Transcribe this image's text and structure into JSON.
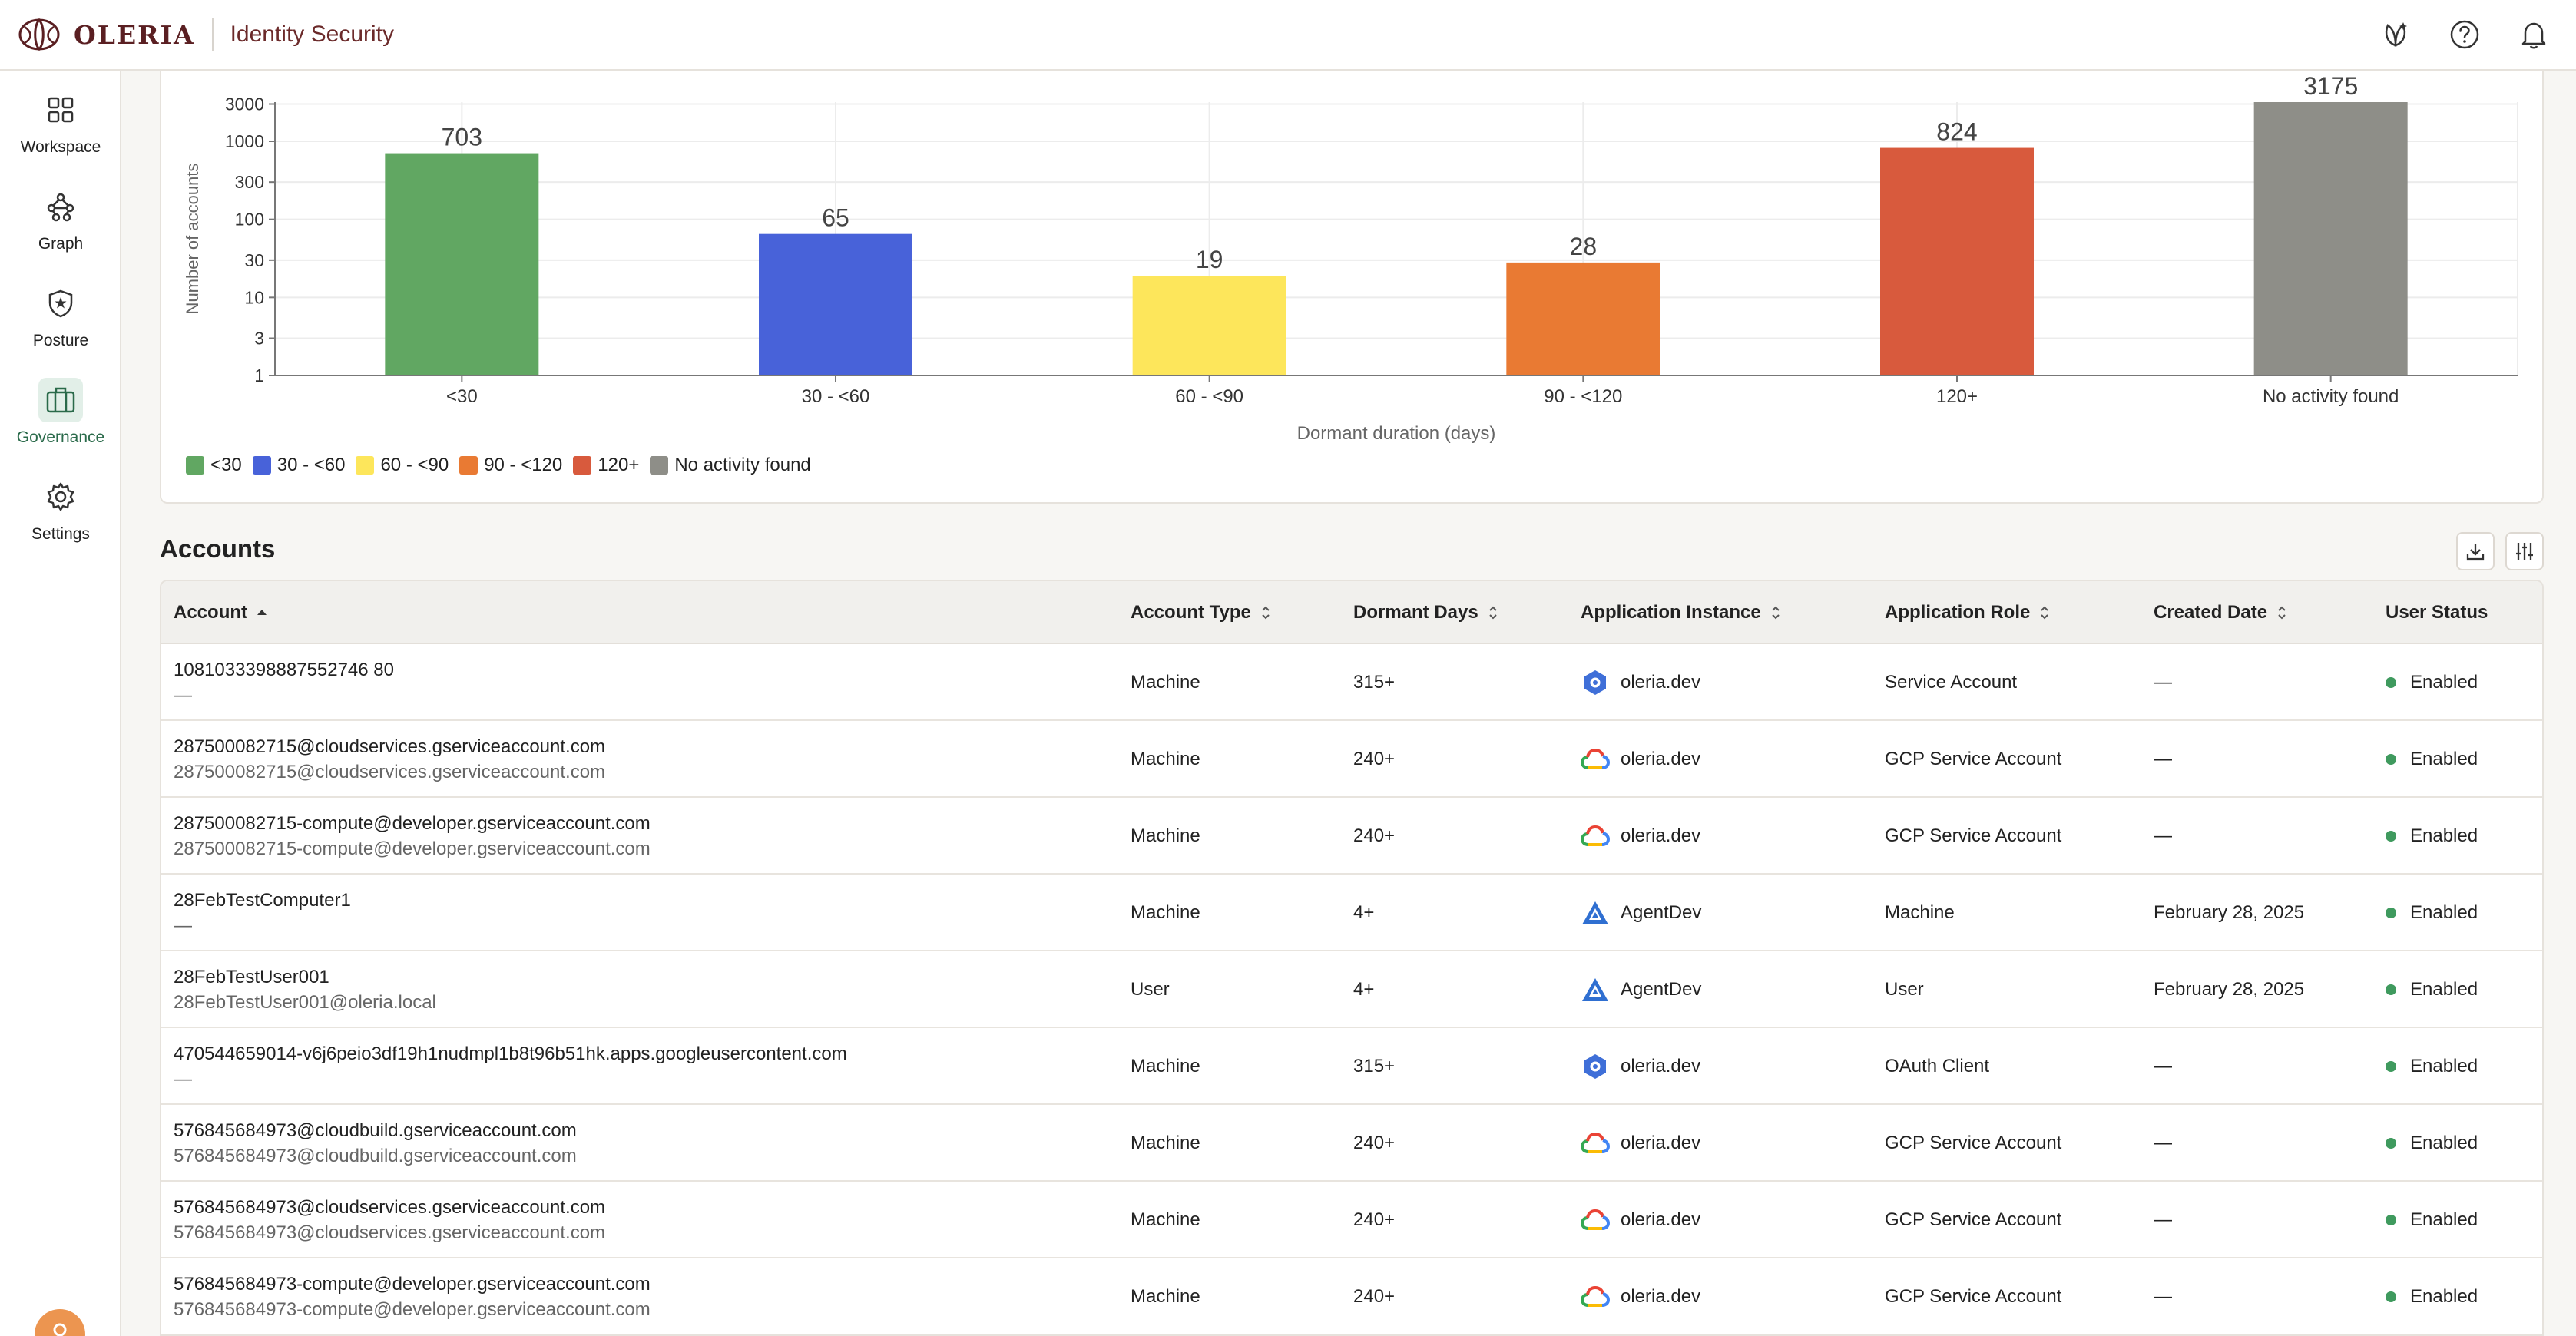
{
  "header": {
    "logo_text": "OLERIA",
    "product": "Identity Security",
    "icons": [
      "ai-assistant-icon",
      "help-icon",
      "bell-icon"
    ]
  },
  "sidebar": {
    "items": [
      {
        "label": "Workspace",
        "icon": "workspace-icon"
      },
      {
        "label": "Graph",
        "icon": "graph-icon"
      },
      {
        "label": "Posture",
        "icon": "posture-shield-icon"
      },
      {
        "label": "Governance",
        "icon": "governance-briefcase-icon",
        "active": true
      },
      {
        "label": "Settings",
        "icon": "gear-icon"
      }
    ]
  },
  "chart_data": {
    "type": "bar",
    "categories": [
      "<30",
      "30 - <60",
      "60 - <90",
      "90 - <120",
      "120+",
      "No activity found"
    ],
    "values": [
      703,
      65,
      19,
      28,
      824,
      3175
    ],
    "colors": [
      "#61a762",
      "#4862d9",
      "#fde65b",
      "#e97a33",
      "#d85a3d",
      "#8e8e88"
    ],
    "xlabel": "Dormant duration (days)",
    "ylabel": "Number of accounts",
    "yscale": "log",
    "yticks": [
      1,
      3,
      10,
      30,
      100,
      300,
      1000,
      3000
    ],
    "ylim": [
      1,
      3175
    ],
    "grid": true,
    "legend": "bottom-left"
  },
  "accounts": {
    "title": "Accounts",
    "columns": [
      "Account",
      "Account Type",
      "Dormant Days",
      "Application Instance",
      "Application Role",
      "Created Date",
      "User Status"
    ],
    "rows": [
      {
        "account": "1081033398887552746 80",
        "sub": "—",
        "type": "Machine",
        "dormant": "315+",
        "app": "oleria.dev",
        "app_icon": "hexagon",
        "role": "Service Account",
        "created": "—",
        "status": "Enabled"
      },
      {
        "account": "287500082715@cloudservices.gserviceaccount.com",
        "sub": "287500082715@cloudservices.gserviceaccount.com",
        "type": "Machine",
        "dormant": "240+",
        "app": "oleria.dev",
        "app_icon": "gcp",
        "role": "GCP Service Account",
        "created": "—",
        "status": "Enabled"
      },
      {
        "account": "287500082715-compute@developer.gserviceaccount.com",
        "sub": "287500082715-compute@developer.gserviceaccount.com",
        "type": "Machine",
        "dormant": "240+",
        "app": "oleria.dev",
        "app_icon": "gcp",
        "role": "GCP Service Account",
        "created": "—",
        "status": "Enabled"
      },
      {
        "account": "28FebTestComputer1",
        "sub": "—",
        "type": "Machine",
        "dormant": "4+",
        "app": "AgentDev",
        "app_icon": "triangle",
        "role": "Machine",
        "created": "February 28, 2025",
        "status": "Enabled"
      },
      {
        "account": "28FebTestUser001",
        "sub": "28FebTestUser001@oleria.local",
        "type": "User",
        "dormant": "4+",
        "app": "AgentDev",
        "app_icon": "triangle",
        "role": "User",
        "created": "February 28, 2025",
        "status": "Enabled"
      },
      {
        "account": "470544659014-v6j6peio3df19h1nudmpl1b8t96b51hk.apps.googleusercontent.com",
        "sub": "—",
        "type": "Machine",
        "dormant": "315+",
        "app": "oleria.dev",
        "app_icon": "hexagon",
        "role": "OAuth Client",
        "created": "—",
        "status": "Enabled"
      },
      {
        "account": "576845684973@cloudbuild.gserviceaccount.com",
        "sub": "576845684973@cloudbuild.gserviceaccount.com",
        "type": "Machine",
        "dormant": "240+",
        "app": "oleria.dev",
        "app_icon": "gcp",
        "role": "GCP Service Account",
        "created": "—",
        "status": "Enabled"
      },
      {
        "account": "576845684973@cloudservices.gserviceaccount.com",
        "sub": "576845684973@cloudservices.gserviceaccount.com",
        "type": "Machine",
        "dormant": "240+",
        "app": "oleria.dev",
        "app_icon": "gcp",
        "role": "GCP Service Account",
        "created": "—",
        "status": "Enabled"
      },
      {
        "account": "576845684973-compute@developer.gserviceaccount.com",
        "sub": "576845684973-compute@developer.gserviceaccount.com",
        "type": "Machine",
        "dormant": "240+",
        "app": "oleria.dev",
        "app_icon": "gcp",
        "role": "GCP Service Account",
        "created": "—",
        "status": "Enabled"
      }
    ]
  },
  "colors": {
    "brand": "#5a1f22",
    "accent_green": "#3f9a5e",
    "status_enabled": "#3f9a5e"
  }
}
